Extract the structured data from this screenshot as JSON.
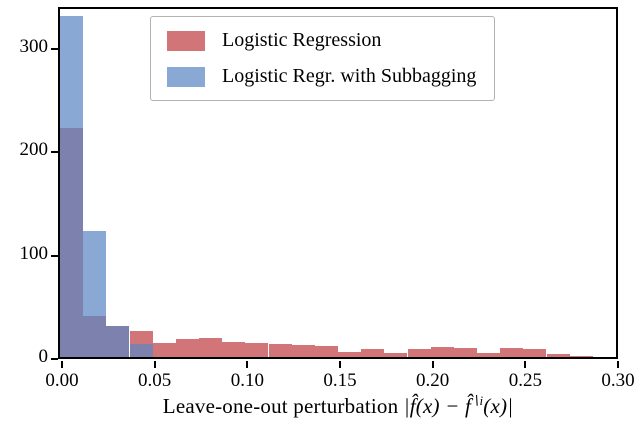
{
  "legend": {
    "items": [
      {
        "label": "Logistic Regression",
        "color": "#c44e52"
      },
      {
        "label": "Logistic Regr. with Subbagging",
        "color": "#5d87c4"
      }
    ]
  },
  "xlabel_parts": {
    "prefix": "Leave-one-out perturbation ",
    "m1": "|f̂(x) − f̂",
    "sup": "∖i",
    "m2": "(x)|"
  },
  "axes": {
    "x": {
      "ticks": [
        {
          "v": 0.0,
          "label": "0.00"
        },
        {
          "v": 0.05,
          "label": "0.05"
        },
        {
          "v": 0.1,
          "label": "0.10"
        },
        {
          "v": 0.15,
          "label": "0.15"
        },
        {
          "v": 0.2,
          "label": "0.20"
        },
        {
          "v": 0.25,
          "label": "0.25"
        },
        {
          "v": 0.3,
          "label": "0.30"
        }
      ]
    },
    "y": {
      "ticks": [
        {
          "v": 0,
          "label": "0"
        },
        {
          "v": 100,
          "label": "100"
        },
        {
          "v": 200,
          "label": "200"
        },
        {
          "v": 300,
          "label": "300"
        }
      ]
    }
  },
  "chart_data": {
    "type": "bar",
    "subtype": "histogram",
    "title": "",
    "xlabel": "Leave-one-out perturbation |f̂(x) − f̂^{∖i}(x)|",
    "ylabel": "",
    "xlim": [
      0,
      0.3
    ],
    "ylim": [
      0,
      337
    ],
    "bin_start": 0,
    "bin_width": 0.0125,
    "grid": false,
    "legend_position": "upper center",
    "series": [
      {
        "name": "Logistic Regression",
        "slug": "logistic-regression",
        "color": "#c44e52",
        "css_color": "rgba(196,78,82,0.78)",
        "values": [
          222,
          40,
          30,
          25,
          14,
          17,
          18,
          15,
          14,
          13,
          12,
          11,
          5,
          8,
          4,
          8,
          10,
          9,
          4,
          9,
          8,
          3,
          1,
          0
        ]
      },
      {
        "name": "Logistic Regr. with Subbagging",
        "slug": "logistic-regr-subbagging",
        "color": "#5d87c4",
        "css_color": "rgba(93,135,196,0.72)",
        "values": [
          330,
          122,
          30,
          13,
          0,
          0,
          0,
          0,
          0,
          0,
          0,
          0,
          0,
          0,
          0,
          0,
          0,
          0,
          0,
          0,
          0,
          0,
          0,
          0
        ]
      }
    ]
  }
}
